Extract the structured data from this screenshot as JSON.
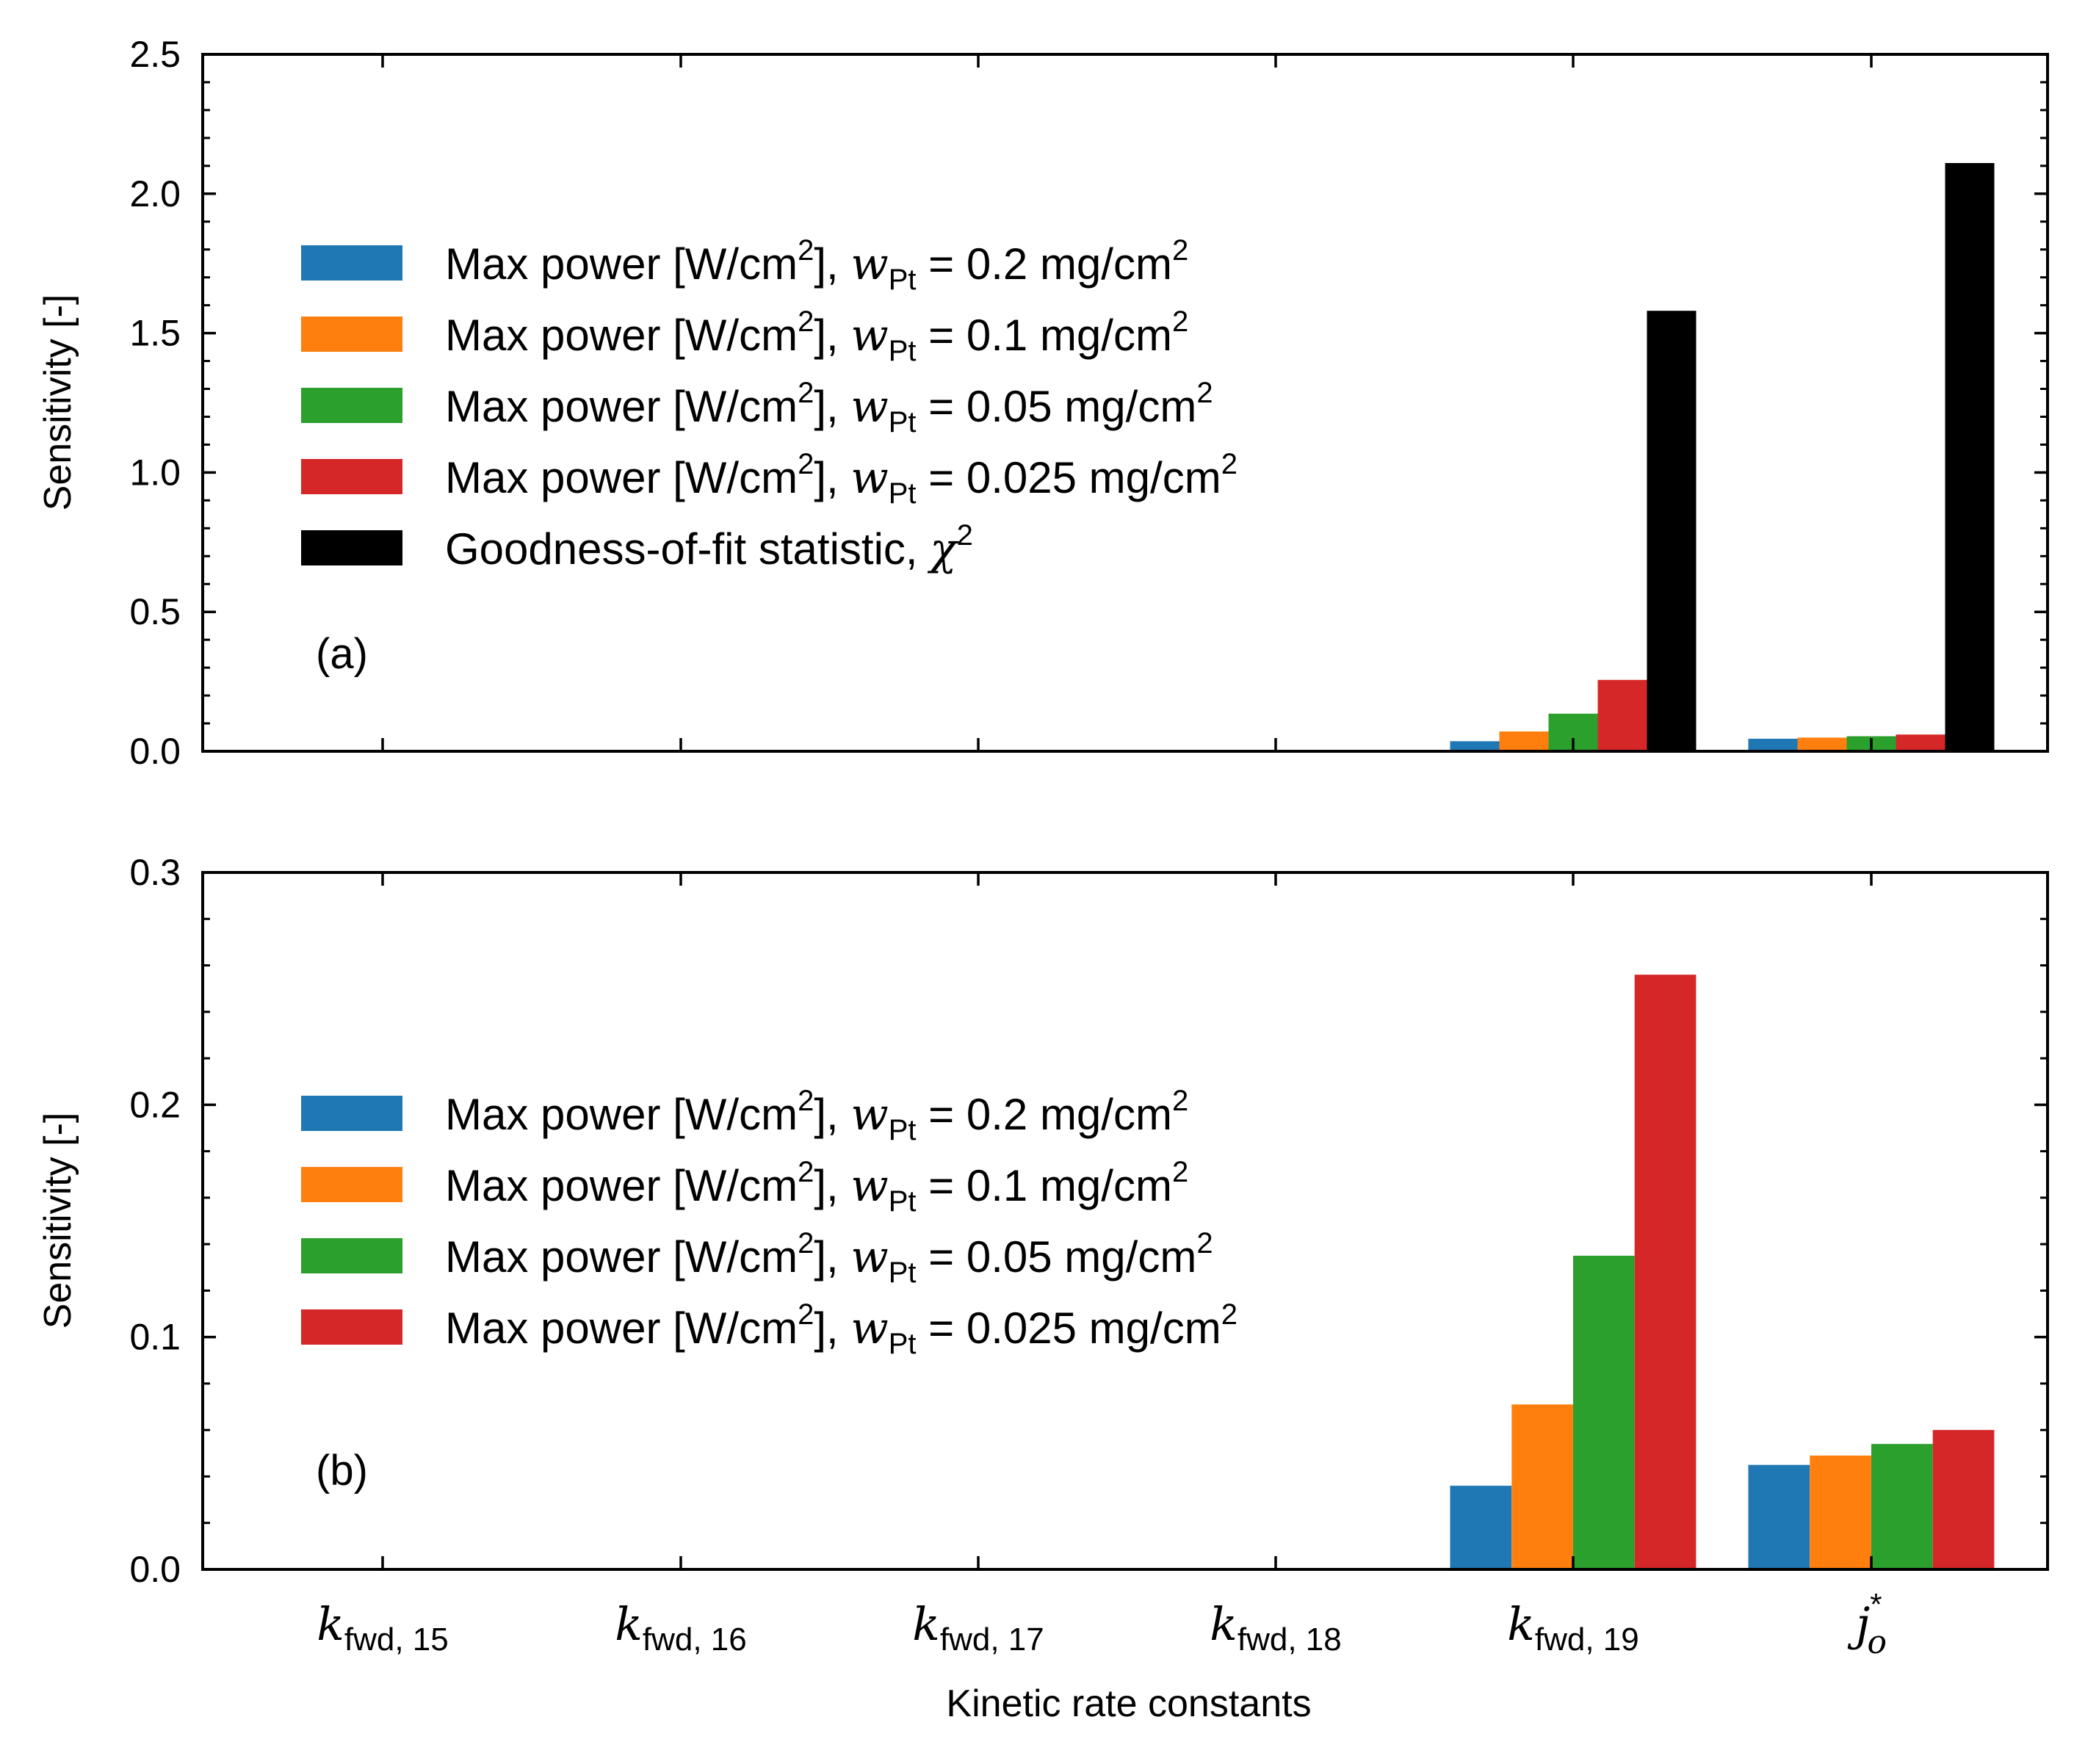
{
  "colors": {
    "blue": "#1f77b4",
    "orange": "#ff7f0e",
    "green": "#2ca02c",
    "red": "#d62728",
    "black": "#000000"
  },
  "x_axis": {
    "label": "Kinetic rate constants",
    "categories": [
      {
        "main": "k",
        "sub": "fwd, 15",
        "sup": ""
      },
      {
        "main": "k",
        "sub": "fwd, 16",
        "sup": ""
      },
      {
        "main": "k",
        "sub": "fwd, 17",
        "sup": ""
      },
      {
        "main": "k",
        "sub": "fwd, 18",
        "sup": ""
      },
      {
        "main": "k",
        "sub": "fwd, 19",
        "sup": ""
      },
      {
        "main": "j",
        "sub": "o",
        "sup": "*"
      }
    ]
  },
  "chart_data": [
    {
      "type": "bar",
      "panel_label": "(a)",
      "title": "",
      "xlabel": "",
      "ylabel": "Sensitivity [-]",
      "ylim": [
        0,
        2.5
      ],
      "yticks": [
        "0.0",
        "0.5",
        "1.0",
        "1.5",
        "2.0",
        "2.5"
      ],
      "legend_position": "upper-left",
      "categories": [
        "k_fwd,15",
        "k_fwd,16",
        "k_fwd,17",
        "k_fwd,18",
        "k_fwd,19",
        "j_o*"
      ],
      "series": [
        {
          "name": "Max power [W/cm2], wPt = 0.2 mg/cm2",
          "label": {
            "pre": "Max power [W/cm",
            "sup1": "2",
            "mid": "], ",
            "var": "w",
            "sub": "Pt",
            "post": " = 0.2 mg/cm",
            "sup2": "2"
          },
          "color": "#1f77b4",
          "values": [
            0,
            0,
            0,
            0,
            0.036,
            0.045
          ]
        },
        {
          "name": "Max power [W/cm2], wPt = 0.1 mg/cm2",
          "label": {
            "pre": "Max power [W/cm",
            "sup1": "2",
            "mid": "], ",
            "var": "w",
            "sub": "Pt",
            "post": " = 0.1 mg/cm",
            "sup2": "2"
          },
          "color": "#ff7f0e",
          "values": [
            0,
            0,
            0,
            0,
            0.071,
            0.049
          ]
        },
        {
          "name": "Max power [W/cm2], wPt = 0.05 mg/cm2",
          "label": {
            "pre": "Max power [W/cm",
            "sup1": "2",
            "mid": "], ",
            "var": "w",
            "sub": "Pt",
            "post": " = 0.05 mg/cm",
            "sup2": "2"
          },
          "color": "#2ca02c",
          "values": [
            0,
            0,
            0,
            0,
            0.135,
            0.054
          ]
        },
        {
          "name": "Max power [W/cm2], wPt = 0.025 mg/cm2",
          "label": {
            "pre": "Max power [W/cm",
            "sup1": "2",
            "mid": "], ",
            "var": "w",
            "sub": "Pt",
            "post": " = 0.025 mg/cm",
            "sup2": "2"
          },
          "color": "#d62728",
          "values": [
            0,
            0,
            0,
            0,
            0.256,
            0.06
          ]
        },
        {
          "name": "Goodness-of-fit statistic, χ2",
          "label": {
            "pre": "Goodness-of-fit statistic, ",
            "var": "χ",
            "sup1": "2"
          },
          "color": "#000000",
          "values": [
            0,
            0,
            0,
            0,
            1.58,
            2.11
          ]
        }
      ]
    },
    {
      "type": "bar",
      "panel_label": "(b)",
      "title": "",
      "xlabel": "Kinetic rate constants",
      "ylabel": "Sensitivity [-]",
      "ylim": [
        0,
        0.3
      ],
      "yticks": [
        "0.0",
        "0.1",
        "0.2",
        "0.3"
      ],
      "legend_position": "upper-left",
      "categories": [
        "k_fwd,15",
        "k_fwd,16",
        "k_fwd,17",
        "k_fwd,18",
        "k_fwd,19",
        "j_o*"
      ],
      "series": [
        {
          "name": "Max power [W/cm2], wPt = 0.2 mg/cm2",
          "label": {
            "pre": "Max power [W/cm",
            "sup1": "2",
            "mid": "], ",
            "var": "w",
            "sub": "Pt",
            "post": " = 0.2 mg/cm",
            "sup2": "2"
          },
          "color": "#1f77b4",
          "values": [
            0,
            0,
            0,
            0,
            0.036,
            0.045
          ]
        },
        {
          "name": "Max power [W/cm2], wPt = 0.1 mg/cm2",
          "label": {
            "pre": "Max power [W/cm",
            "sup1": "2",
            "mid": "], ",
            "var": "w",
            "sub": "Pt",
            "post": " = 0.1 mg/cm",
            "sup2": "2"
          },
          "color": "#ff7f0e",
          "values": [
            0,
            0,
            0,
            0,
            0.071,
            0.049
          ]
        },
        {
          "name": "Max power [W/cm2], wPt = 0.05 mg/cm2",
          "label": {
            "pre": "Max power [W/cm",
            "sup1": "2",
            "mid": "], ",
            "var": "w",
            "sub": "Pt",
            "post": " = 0.05 mg/cm",
            "sup2": "2"
          },
          "color": "#2ca02c",
          "values": [
            0,
            0,
            0,
            0,
            0.135,
            0.054
          ]
        },
        {
          "name": "Max power [W/cm2], wPt = 0.025 mg/cm2",
          "label": {
            "pre": "Max power [W/cm",
            "sup1": "2",
            "mid": "], ",
            "var": "w",
            "sub": "Pt",
            "post": " = 0.025 mg/cm",
            "sup2": "2"
          },
          "color": "#d62728",
          "values": [
            0,
            0,
            0,
            0,
            0.256,
            0.06
          ]
        }
      ]
    }
  ]
}
